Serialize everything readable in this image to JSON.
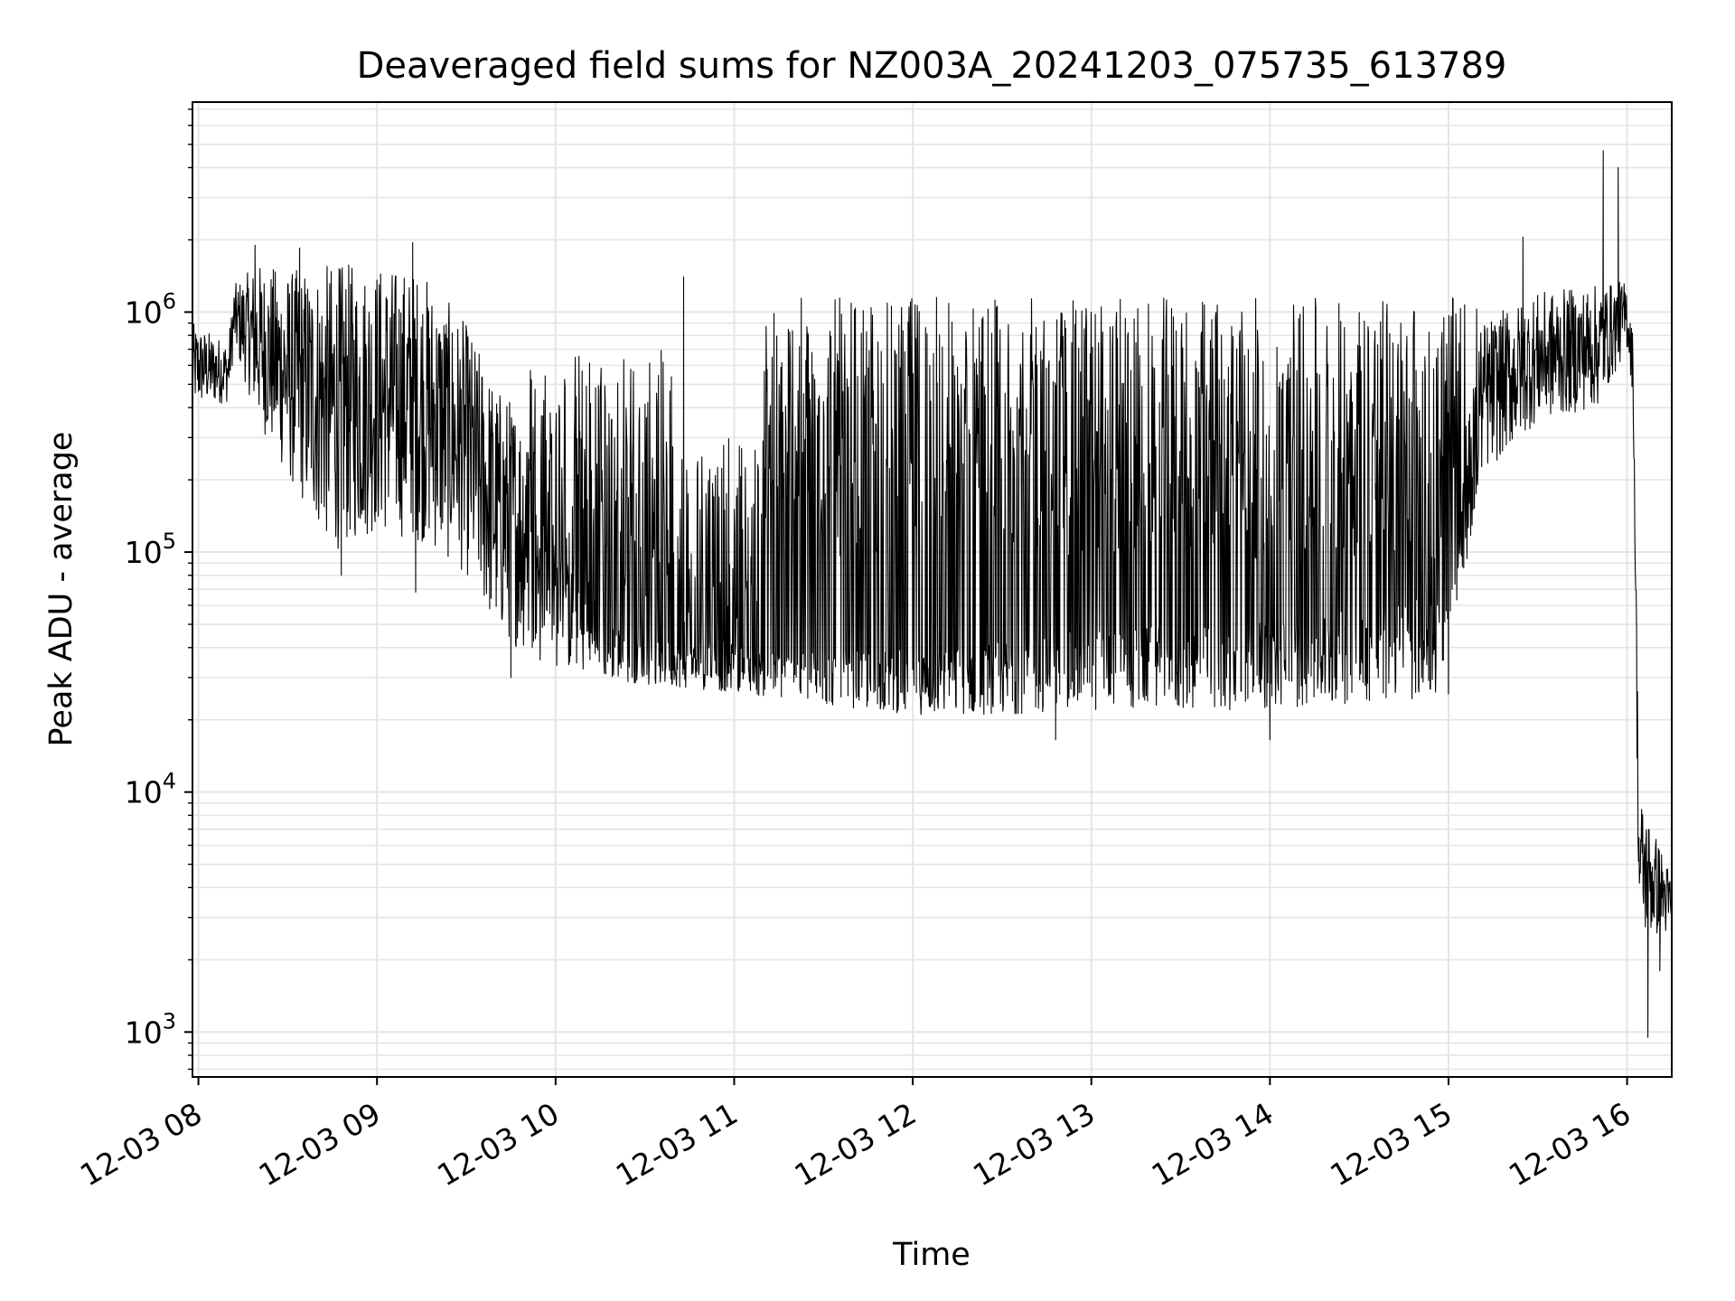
{
  "chart_data": {
    "type": "line",
    "title": "Deaveraged field sums for NZ003A_20241203_075735_613789",
    "xlabel": "Time",
    "ylabel": "Peak ADU - average",
    "yscale": "log",
    "ylim": [
      650,
      7500000
    ],
    "xlim": [
      "2024-12-03 07:58",
      "2024-12-03 16:15"
    ],
    "grid": true,
    "line_color": "#000000",
    "grid_color": "#e5e5e5",
    "x_ticks": [
      {
        "value": "2024-12-03 08:00",
        "label": "12-03 08"
      },
      {
        "value": "2024-12-03 09:00",
        "label": "12-03 09"
      },
      {
        "value": "2024-12-03 10:00",
        "label": "12-03 10"
      },
      {
        "value": "2024-12-03 11:00",
        "label": "12-03 11"
      },
      {
        "value": "2024-12-03 12:00",
        "label": "12-03 12"
      },
      {
        "value": "2024-12-03 13:00",
        "label": "12-03 13"
      },
      {
        "value": "2024-12-03 14:00",
        "label": "12-03 14"
      },
      {
        "value": "2024-12-03 15:00",
        "label": "12-03 15"
      },
      {
        "value": "2024-12-03 16:00",
        "label": "12-03 16"
      }
    ],
    "y_ticks": [
      {
        "value": 1000,
        "base": "10",
        "exp": "3"
      },
      {
        "value": 10000,
        "base": "10",
        "exp": "4"
      },
      {
        "value": 100000,
        "base": "10",
        "exp": "5"
      },
      {
        "value": 1000000,
        "base": "10",
        "exp": "6"
      }
    ],
    "series": [
      {
        "envelope": [
          {
            "time": "2024-12-03 07:58",
            "low": 400000,
            "high": 900000
          },
          {
            "time": "2024-12-03 08:10",
            "low": 420000,
            "high": 750000
          },
          {
            "time": "2024-12-03 08:12",
            "low": 700000,
            "high": 1300000
          },
          {
            "time": "2024-12-03 08:20",
            "low": 350000,
            "high": 1600000
          },
          {
            "time": "2024-12-03 08:30",
            "low": 200000,
            "high": 1500000
          },
          {
            "time": "2024-12-03 08:45",
            "low": 100000,
            "high": 1600000
          },
          {
            "time": "2024-12-03 09:00",
            "low": 120000,
            "high": 1600000
          },
          {
            "time": "2024-12-03 09:15",
            "low": 110000,
            "high": 1500000
          },
          {
            "time": "2024-12-03 09:30",
            "low": 80000,
            "high": 900000
          },
          {
            "time": "2024-12-03 09:40",
            "low": 45000,
            "high": 500000
          },
          {
            "time": "2024-12-03 09:50",
            "low": 38000,
            "high": 400000
          },
          {
            "time": "2024-12-03 10:00",
            "low": 33000,
            "high": 250000
          },
          {
            "time": "2024-12-03 10:15",
            "low": 30000,
            "high": 80000
          },
          {
            "time": "2024-12-03 10:30",
            "low": 28000,
            "high": 60000
          },
          {
            "time": "2024-12-03 10:45",
            "low": 27000,
            "high": 55000
          },
          {
            "time": "2024-12-03 11:00",
            "low": 26000,
            "high": 50000
          },
          {
            "time": "2024-12-03 11:30",
            "low": 23000,
            "high": 55000
          },
          {
            "time": "2024-12-03 12:00",
            "low": 21000,
            "high": 60000
          },
          {
            "time": "2024-12-03 12:30",
            "low": 21000,
            "high": 70000
          },
          {
            "time": "2024-12-03 13:00",
            "low": 22000,
            "high": 80000
          },
          {
            "time": "2024-12-03 14:00",
            "low": 22000,
            "high": 90000
          },
          {
            "time": "2024-12-03 15:00",
            "low": 25000,
            "high": 130000
          },
          {
            "time": "2024-12-03 15:10",
            "low": 200000,
            "high": 900000
          },
          {
            "time": "2024-12-03 15:30",
            "low": 350000,
            "high": 1200000
          },
          {
            "time": "2024-12-03 15:50",
            "low": 400000,
            "high": 1300000
          },
          {
            "time": "2024-12-03 16:00",
            "low": 700000,
            "high": 1350000
          },
          {
            "time": "2024-12-03 16:02",
            "low": 450000,
            "high": 800000
          },
          {
            "time": "2024-12-03 16:04",
            "low": 2500,
            "high": 10000
          },
          {
            "time": "2024-12-03 16:15",
            "low": 2500,
            "high": 4500
          }
        ],
        "upper_bursts": [
          {
            "start": "2024-12-03 09:50",
            "end": "2024-12-03 10:40",
            "high": 700000
          },
          {
            "start": "2024-12-03 10:40",
            "end": "2024-12-03 11:10",
            "high": 300000
          },
          {
            "start": "2024-12-03 11:10",
            "end": "2024-12-03 15:10",
            "high": 1150000
          }
        ],
        "spikes": [
          {
            "time": "2024-12-03 08:19",
            "value": 1900000
          },
          {
            "time": "2024-12-03 08:34",
            "value": 1850000
          },
          {
            "time": "2024-12-03 09:12",
            "value": 1950000
          },
          {
            "time": "2024-12-03 10:43",
            "value": 1400000
          },
          {
            "time": "2024-12-03 12:08",
            "value": 1150000
          },
          {
            "time": "2024-12-03 15:25",
            "value": 2050000
          },
          {
            "time": "2024-12-03 15:52",
            "value": 4700000
          },
          {
            "time": "2024-12-03 15:57",
            "value": 4000000
          },
          {
            "time": "2024-12-03 08:48",
            "value": 80000
          },
          {
            "time": "2024-12-03 09:13",
            "value": 68000
          },
          {
            "time": "2024-12-03 09:45",
            "value": 30000
          },
          {
            "time": "2024-12-03 12:48",
            "value": 16500
          },
          {
            "time": "2024-12-03 14:00",
            "value": 16500
          },
          {
            "time": "2024-12-03 16:07",
            "value": 950
          },
          {
            "time": "2024-12-03 16:11",
            "value": 1800
          }
        ]
      }
    ]
  }
}
